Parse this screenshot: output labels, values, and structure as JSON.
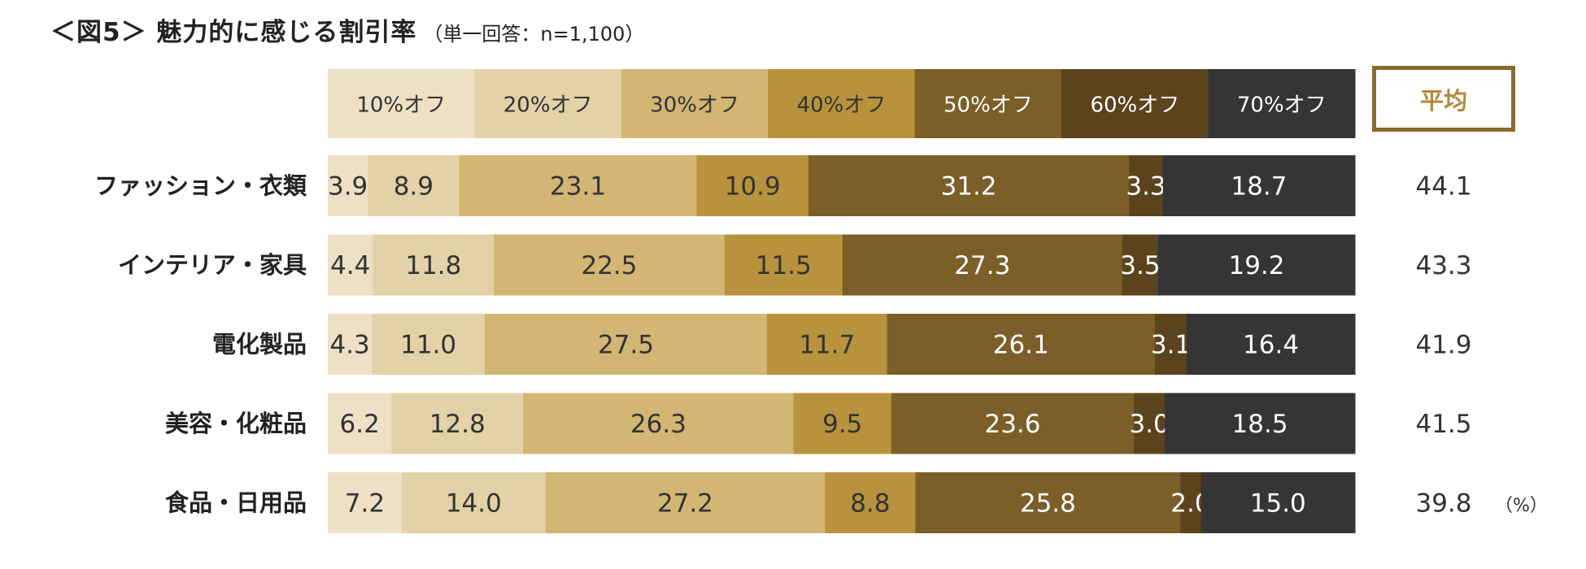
{
  "title": {
    "main": "＜図5＞ 魅力的に感じる割引率",
    "sub": "（単一回答：n=1,100）"
  },
  "average_label": "平均",
  "unit_label": "（%）",
  "chart_data": {
    "type": "bar",
    "orientation": "horizontal",
    "stacked": true,
    "percent_stacked": true,
    "title": "魅力的に感じる割引率",
    "legend_position": "top",
    "categories": [
      "ファッション・衣類",
      "インテリア・家具",
      "電化製品",
      "美容・化粧品",
      "食品・日用品"
    ],
    "series": [
      {
        "name": "10%オフ",
        "color": "#EDE0C5",
        "text_color": "#333333",
        "values": [
          3.9,
          4.4,
          4.3,
          6.2,
          7.2
        ]
      },
      {
        "name": "20%オフ",
        "color": "#E3D1A8",
        "text_color": "#333333",
        "values": [
          8.9,
          11.8,
          11.0,
          12.8,
          14.0
        ]
      },
      {
        "name": "30%オフ",
        "color": "#D3B574",
        "text_color": "#333333",
        "values": [
          23.1,
          22.5,
          27.5,
          26.3,
          27.2
        ]
      },
      {
        "name": "40%オフ",
        "color": "#B8923C",
        "text_color": "#333333",
        "values": [
          10.9,
          11.5,
          11.7,
          9.5,
          8.8
        ]
      },
      {
        "name": "50%オフ",
        "color": "#7B5E28",
        "text_color": "#FFFFFF",
        "values": [
          31.2,
          27.3,
          26.1,
          23.6,
          25.8
        ]
      },
      {
        "name": "60%オフ",
        "color": "#5B441D",
        "text_color": "#FFFFFF",
        "values": [
          3.3,
          3.5,
          3.1,
          3.0,
          2.0
        ]
      },
      {
        "name": "70%オフ",
        "color": "#353535",
        "text_color": "#FFFFFF",
        "values": [
          18.7,
          19.2,
          16.4,
          18.5,
          15.0
        ]
      }
    ],
    "averages": [
      44.1,
      43.3,
      41.9,
      41.5,
      39.8
    ],
    "xlim": [
      0,
      100
    ]
  }
}
